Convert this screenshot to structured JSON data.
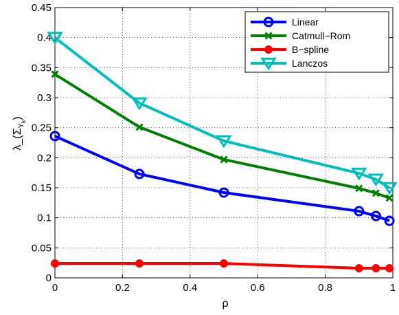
{
  "chart_data": {
    "type": "line",
    "xlabel": "ρ",
    "ylabel": "λ_(Σ",
    "ylabel_sub": "Y",
    "ylabel_subsub": "k",
    "ylabel_close": ")",
    "xlim": [
      0,
      1
    ],
    "ylim": [
      0,
      0.45
    ],
    "x_ticks": [
      "0",
      "0.2",
      "0.4",
      "0.6",
      "0.8",
      "1"
    ],
    "y_ticks": [
      "0",
      "0.05",
      "0.1",
      "0.15",
      "0.2",
      "0.25",
      "0.3",
      "0.35",
      "0.4",
      "0.45"
    ],
    "grid": true,
    "legend_position": "top-right",
    "x": [
      0,
      0.25,
      0.5,
      0.9,
      0.95,
      0.99
    ],
    "series": [
      {
        "name": "Linear",
        "color": "#0000ff",
        "marker": "circle",
        "values": [
          0.236,
          0.173,
          0.142,
          0.111,
          0.103,
          0.095
        ]
      },
      {
        "name": "Catmull−Rom",
        "color": "#008000",
        "marker": "x",
        "values": [
          0.339,
          0.251,
          0.197,
          0.149,
          0.141,
          0.133
        ]
      },
      {
        "name": "B−spline",
        "color": "#ff0000",
        "marker": "dot",
        "values": [
          0.024,
          0.024,
          0.024,
          0.016,
          0.016,
          0.016
        ]
      },
      {
        "name": "Lanczos",
        "color": "#00bfbf",
        "marker": "triangle-down",
        "values": [
          0.4,
          0.291,
          0.228,
          0.174,
          0.164,
          0.15
        ]
      }
    ]
  }
}
